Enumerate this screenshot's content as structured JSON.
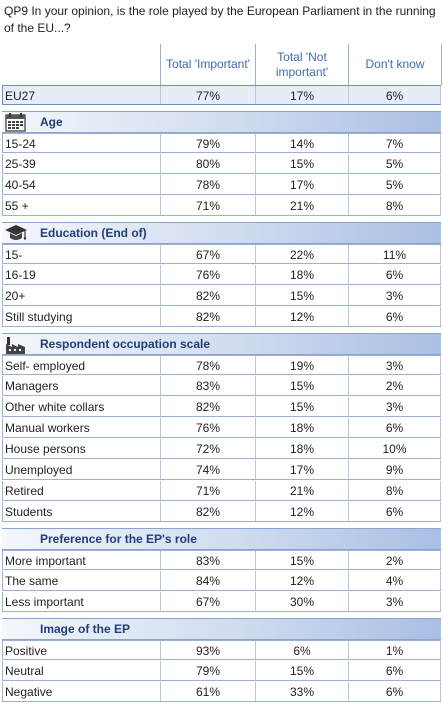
{
  "title": "QP9 In your opinion, is the role played by the European Parliament in the running of the EU...?",
  "headers": {
    "col1": "Total 'Important'",
    "col2": "Total 'Not important'",
    "col3": "Don't know"
  },
  "eu27": {
    "label": "EU27",
    "v1": "77%",
    "v2": "17%",
    "v3": "6%"
  },
  "sections": [
    {
      "title": "Age",
      "icon": "calendar-icon",
      "rows": [
        {
          "label": "15-24",
          "v1": "79%",
          "v2": "14%",
          "v3": "7%"
        },
        {
          "label": "25-39",
          "v1": "80%",
          "v2": "15%",
          "v3": "5%"
        },
        {
          "label": "40-54",
          "v1": "78%",
          "v2": "17%",
          "v3": "5%"
        },
        {
          "label": "55 +",
          "v1": "71%",
          "v2": "21%",
          "v3": "8%"
        }
      ]
    },
    {
      "title": "Education (End of)",
      "icon": "graduation-cap-icon",
      "rows": [
        {
          "label": "15-",
          "v1": "67%",
          "v2": "22%",
          "v3": "11%"
        },
        {
          "label": "16-19",
          "v1": "76%",
          "v2": "18%",
          "v3": "6%"
        },
        {
          "label": "20+",
          "v1": "82%",
          "v2": "15%",
          "v3": "3%"
        },
        {
          "label": "Still studying",
          "v1": "82%",
          "v2": "12%",
          "v3": "6%"
        }
      ]
    },
    {
      "title": "Respondent occupation scale",
      "icon": "factory-icon",
      "rows": [
        {
          "label": "Self- employed",
          "v1": "78%",
          "v2": "19%",
          "v3": "3%"
        },
        {
          "label": "Managers",
          "v1": "83%",
          "v2": "15%",
          "v3": "2%"
        },
        {
          "label": "Other white collars",
          "v1": "82%",
          "v2": "15%",
          "v3": "3%"
        },
        {
          "label": "Manual workers",
          "v1": "76%",
          "v2": "18%",
          "v3": "6%"
        },
        {
          "label": "House persons",
          "v1": "72%",
          "v2": "18%",
          "v3": "10%"
        },
        {
          "label": "Unemployed",
          "v1": "74%",
          "v2": "17%",
          "v3": "9%"
        },
        {
          "label": "Retired",
          "v1": "71%",
          "v2": "21%",
          "v3": "8%"
        },
        {
          "label": "Students",
          "v1": "82%",
          "v2": "12%",
          "v3": "6%"
        }
      ]
    },
    {
      "title": "Preference for the EP's role",
      "icon": "",
      "rows": [
        {
          "label": "More important",
          "v1": "83%",
          "v2": "15%",
          "v3": "2%"
        },
        {
          "label": "The same",
          "v1": "84%",
          "v2": "12%",
          "v3": "4%"
        },
        {
          "label": "Less important",
          "v1": "67%",
          "v2": "30%",
          "v3": "3%"
        }
      ]
    },
    {
      "title": "Image of the EP",
      "icon": "",
      "rows": [
        {
          "label": "Positive",
          "v1": "93%",
          "v2": "6%",
          "v3": "1%"
        },
        {
          "label": "Neutral",
          "v1": "79%",
          "v2": "15%",
          "v3": "6%"
        },
        {
          "label": "Negative",
          "v1": "61%",
          "v2": "33%",
          "v3": "6%"
        }
      ]
    }
  ]
}
